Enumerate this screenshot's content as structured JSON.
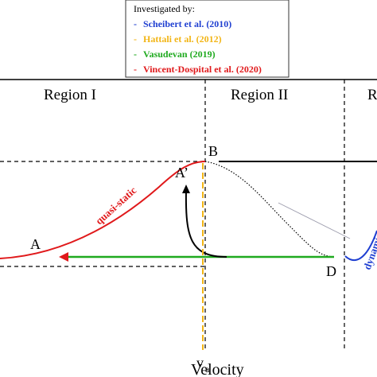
{
  "legend": {
    "title": "Investigated by:",
    "entries": [
      {
        "marker": "-",
        "label": "Scheibert et al. (2010)",
        "color": "#1f3fd1"
      },
      {
        "marker": "-",
        "label": "Hattali et al. (2012)",
        "color": "#f2b516"
      },
      {
        "marker": "-",
        "label": "Vasudevan (2019)",
        "color": "#1faa1f"
      },
      {
        "marker": "-",
        "label": "Vincent-Dospital et al. (2020)",
        "color": "#e0191b"
      }
    ]
  },
  "regions": [
    "Region I",
    "Region II",
    "Region III"
  ],
  "points": {
    "a": "A",
    "a_prime": "A’",
    "b": "B",
    "d": "D"
  },
  "curves": {
    "quasi_static": "quasi-static",
    "dynamic": "dynamic"
  },
  "axis": {
    "label": "Velocity",
    "tick": {
      "symbol": "v",
      "subscript": "a"
    }
  }
}
